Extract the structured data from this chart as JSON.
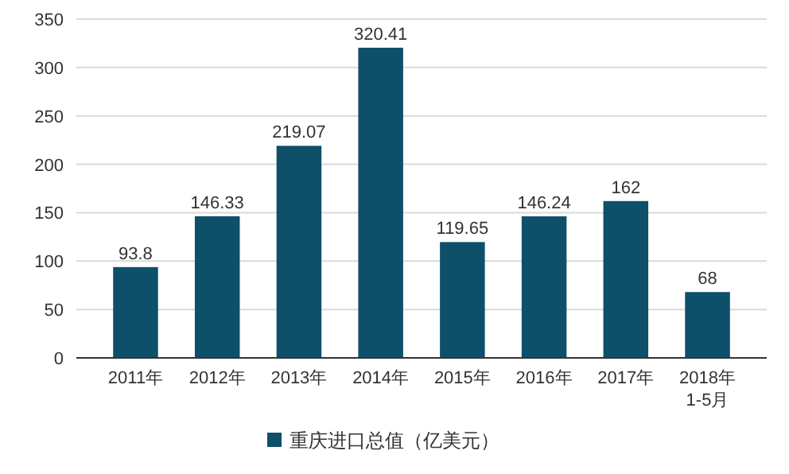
{
  "chart_data": {
    "type": "bar",
    "categories": [
      "2011年",
      "2012年",
      "2013年",
      "2014年",
      "2015年",
      "2016年",
      "2017年",
      "2018年\n1-5月"
    ],
    "series": [
      {
        "name": "重庆进口总值（亿美元）",
        "color": "#0e4f6a",
        "values": [
          93.8,
          146.33,
          219.07,
          320.41,
          119.65,
          146.24,
          162,
          68
        ]
      }
    ],
    "ylim": [
      0,
      350
    ],
    "yticks": [
      0,
      50,
      100,
      150,
      200,
      250,
      300,
      350
    ],
    "grid": "y",
    "data_labels": true,
    "legend": "bottom"
  }
}
